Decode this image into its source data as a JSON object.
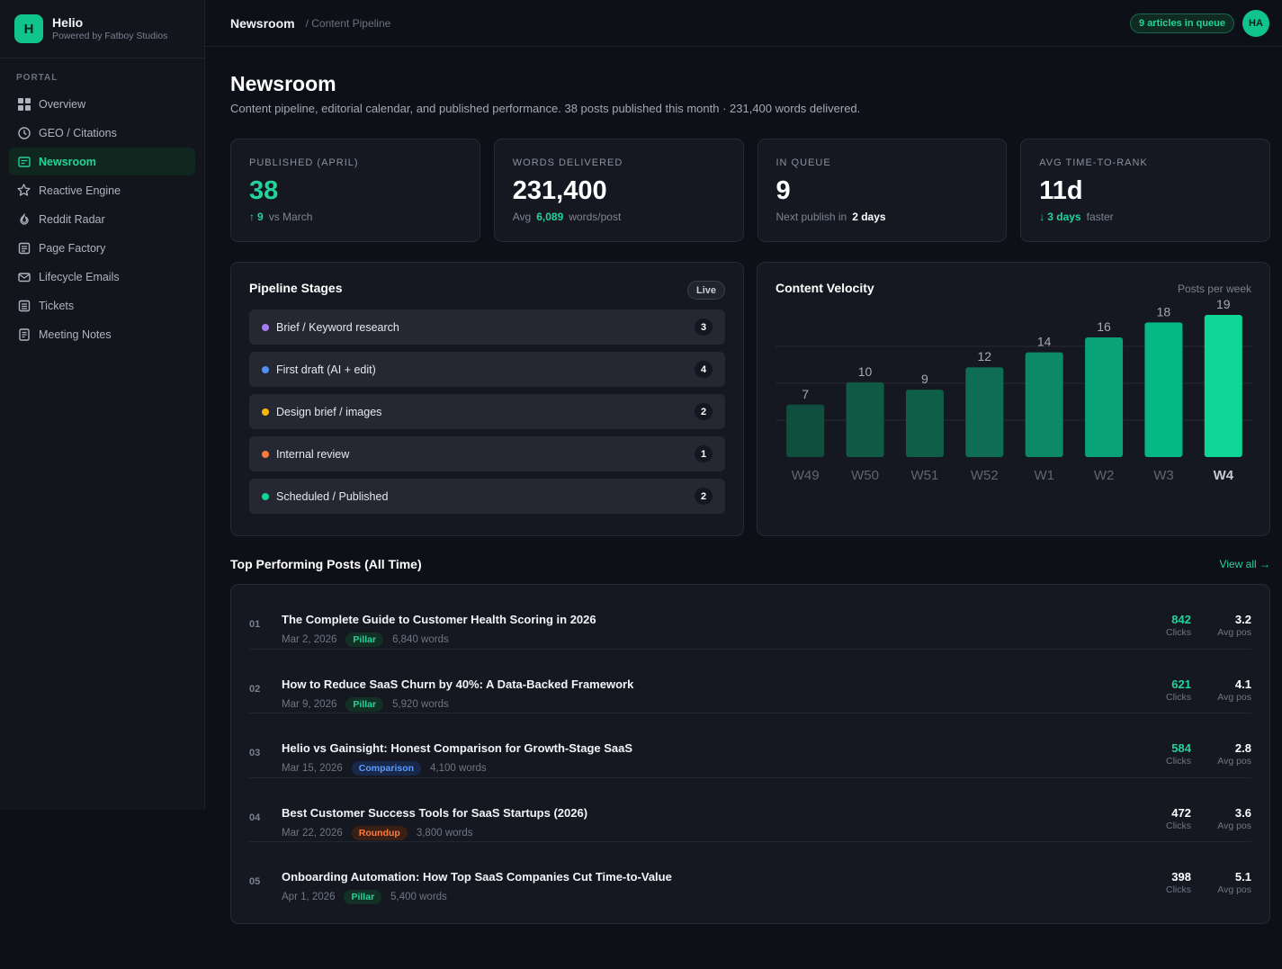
{
  "brand": {
    "logo_letter": "H",
    "name": "Helio",
    "sub": "Powered by Fatboy Studios"
  },
  "sidebar": {
    "section": "PORTAL",
    "items": [
      {
        "label": "Overview",
        "icon": "grid-icon"
      },
      {
        "label": "GEO / Citations",
        "icon": "clock-icon"
      },
      {
        "label": "Newsroom",
        "icon": "newspaper-icon",
        "active": true
      },
      {
        "label": "Reactive Engine",
        "icon": "star-icon"
      },
      {
        "label": "Reddit Radar",
        "icon": "flame-icon"
      },
      {
        "label": "Page Factory",
        "icon": "pages-icon"
      },
      {
        "label": "Lifecycle Emails",
        "icon": "mail-icon"
      },
      {
        "label": "Tickets",
        "icon": "ticket-icon"
      },
      {
        "label": "Meeting Notes",
        "icon": "notes-icon"
      }
    ]
  },
  "topbar": {
    "crumb_main": "Newsroom",
    "crumb_sub": "/ Content Pipeline",
    "queue_badge": "9 articles in queue",
    "avatar": "HA"
  },
  "page": {
    "title": "Newsroom",
    "subtitle": "Content pipeline, editorial calendar, and published performance. 38 posts published this month · 231,400 words delivered."
  },
  "stats": {
    "published": {
      "label": "PUBLISHED (APRIL)",
      "value": "38",
      "delta": "9",
      "foot": "vs March"
    },
    "words": {
      "label": "WORDS DELIVERED",
      "value": "231,400",
      "foot_pre": "Avg",
      "avg": "6,089",
      "foot_post": "words/post"
    },
    "queue": {
      "label": "IN QUEUE",
      "value": "9",
      "foot_pre": "Next publish in",
      "next": "2 days"
    },
    "rank": {
      "label": "AVG TIME-TO-RANK",
      "value": "11d",
      "delta": "3 days",
      "foot": "faster"
    }
  },
  "pipeline": {
    "title": "Pipeline Stages",
    "badge": "Live",
    "stages": [
      {
        "label": "Brief / Keyword research",
        "count": "3",
        "color": "#a47cf3"
      },
      {
        "label": "First draft (AI + edit)",
        "count": "4",
        "color": "#4f8ff7"
      },
      {
        "label": "Design brief / images",
        "count": "2",
        "color": "#f5b70a"
      },
      {
        "label": "Internal review",
        "count": "1",
        "color": "#fb7a3c"
      },
      {
        "label": "Scheduled / Published",
        "count": "2",
        "color": "#10d493"
      }
    ]
  },
  "velocity": {
    "title": "Content Velocity",
    "note": "Posts per week"
  },
  "chart_data": {
    "type": "bar",
    "categories": [
      "W49",
      "W50",
      "W51",
      "W52",
      "W1",
      "W2",
      "W3",
      "W4"
    ],
    "values": [
      7,
      10,
      9,
      12,
      14,
      16,
      18,
      19
    ],
    "ylim": [
      0,
      19
    ],
    "grid": true,
    "colors": [
      "#0f4f3d",
      "#105a45",
      "#0f5e48",
      "#0f6d53",
      "#0b8a65",
      "#08a377",
      "#06b884",
      "#0dd697"
    ]
  },
  "top_posts": {
    "title": "Top Performing Posts (All Time)",
    "view_all": "View all →",
    "clicks_label": "Clicks",
    "pos_label": "Avg pos",
    "rows": [
      {
        "num": "01",
        "title": "The Complete Guide to Customer Health Scoring in 2026",
        "date": "Mar 2, 2026",
        "tag": "Pillar",
        "tag_type": "pillar",
        "words": "6,840 words",
        "clicks": "842",
        "clicks_green": true,
        "pos": "3.2"
      },
      {
        "num": "02",
        "title": "How to Reduce SaaS Churn by 40%: A Data-Backed Framework",
        "date": "Mar 9, 2026",
        "tag": "Pillar",
        "tag_type": "pillar",
        "words": "5,920 words",
        "clicks": "621",
        "clicks_green": true,
        "pos": "4.1"
      },
      {
        "num": "03",
        "title": "Helio vs Gainsight: Honest Comparison for Growth-Stage SaaS",
        "date": "Mar 15, 2026",
        "tag": "Comparison",
        "tag_type": "comparison",
        "words": "4,100 words",
        "clicks": "584",
        "clicks_green": true,
        "pos": "2.8"
      },
      {
        "num": "04",
        "title": "Best Customer Success Tools for SaaS Startups (2026)",
        "date": "Mar 22, 2026",
        "tag": "Roundup",
        "tag_type": "roundup",
        "words": "3,800 words",
        "clicks": "472",
        "clicks_green": false,
        "pos": "3.6"
      },
      {
        "num": "05",
        "title": "Onboarding Automation: How Top SaaS Companies Cut Time-to-Value",
        "date": "Apr 1, 2026",
        "tag": "Pillar",
        "tag_type": "pillar",
        "words": "5,400 words",
        "clicks": "398",
        "clicks_green": false,
        "pos": "5.1"
      }
    ]
  }
}
